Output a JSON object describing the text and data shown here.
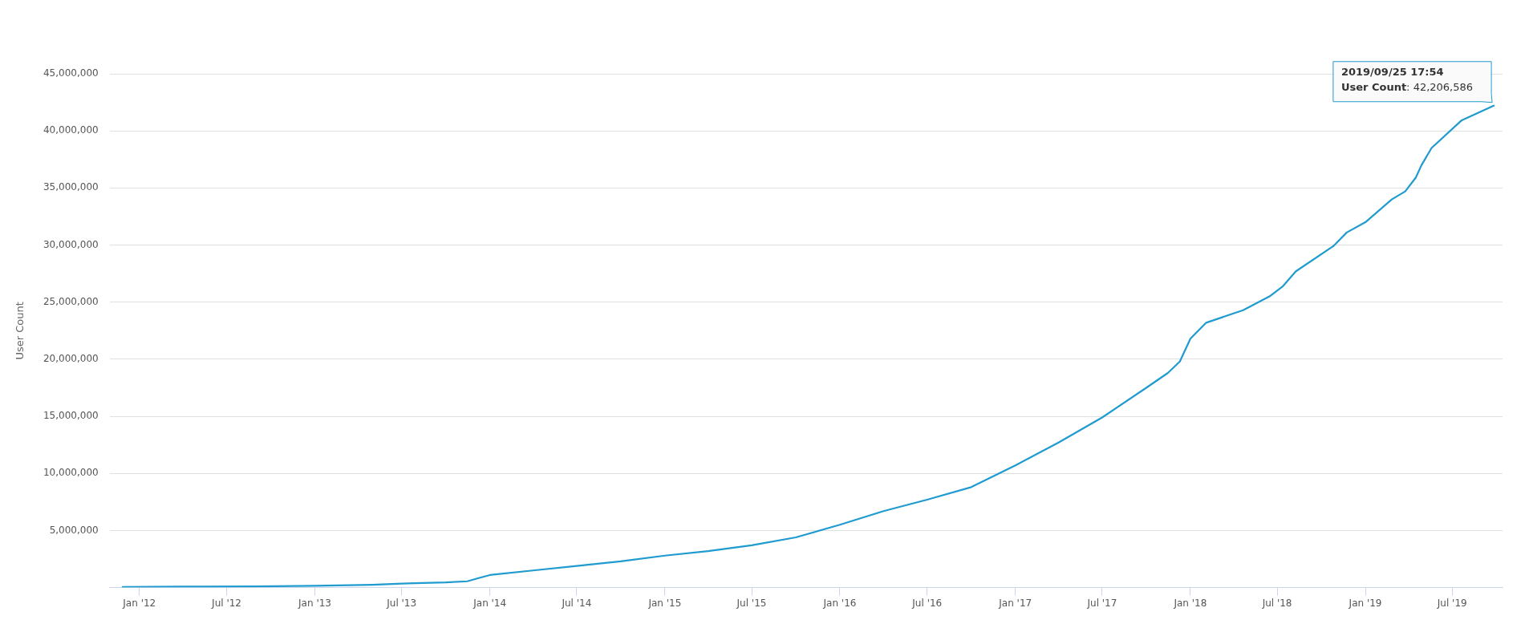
{
  "chart_data": {
    "type": "line",
    "ylabel": "User Count",
    "x": [
      "2011-11-27",
      "2012-04-01",
      "2012-09-01",
      "2013-01-01",
      "2013-05-01",
      "2013-07-01",
      "2013-10-01",
      "2013-11-15",
      "2013-12-10",
      "2014-01-01",
      "2014-04-01",
      "2014-07-01",
      "2014-10-01",
      "2015-01-01",
      "2015-04-01",
      "2015-07-01",
      "2015-10-01",
      "2016-01-01",
      "2016-04-01",
      "2016-07-01",
      "2016-10-01",
      "2017-01-01",
      "2017-04-01",
      "2017-07-01",
      "2017-10-01",
      "2017-11-15",
      "2017-12-10",
      "2018-01-01",
      "2018-02-03",
      "2018-04-21",
      "2018-06-15",
      "2018-07-13",
      "2018-08-09",
      "2018-10-26",
      "2018-11-23",
      "2019-01-01",
      "2019-02-25",
      "2019-03-25",
      "2019-04-16",
      "2019-04-28",
      "2019-05-19",
      "2019-07-20",
      "2019-09-25T17:54"
    ],
    "series": [
      {
        "color": "#1f9bcf",
        "values": [
          60000,
          80000,
          100000,
          150000,
          250000,
          350000,
          450000,
          550000,
          850000,
          1100000,
          1500000,
          1900000,
          2300000,
          2800000,
          3200000,
          3700000,
          4400000,
          5500000,
          6700000,
          7700000,
          8800000,
          10700000,
          12700000,
          14900000,
          17500000,
          18800000,
          19800000,
          21800000,
          23200000,
          24300000,
          25500000,
          26400000,
          27700000,
          29900000,
          31100000,
          32000000,
          34000000,
          34700000,
          35900000,
          37000000,
          38500000,
          40900000,
          42206586
        ]
      }
    ],
    "ylim": [
      0,
      45000000
    ],
    "yticks": [
      {
        "value": 5000000,
        "label": "5,000,000"
      },
      {
        "value": 10000000,
        "label": "10,000,000"
      },
      {
        "value": 15000000,
        "label": "15,000,000"
      },
      {
        "value": 20000000,
        "label": "20,000,000"
      },
      {
        "value": 25000000,
        "label": "25,000,000"
      },
      {
        "value": 30000000,
        "label": "30,000,000"
      },
      {
        "value": 35000000,
        "label": "35,000,000"
      },
      {
        "value": 40000000,
        "label": "40,000,000"
      },
      {
        "value": 45000000,
        "label": "45,000,000"
      }
    ],
    "xlim": [
      "2011-10-31",
      "2019-10-14"
    ],
    "xticks": [
      {
        "value": "2012-01-01",
        "label": "Jan '12"
      },
      {
        "value": "2012-07-01",
        "label": "Jul '12"
      },
      {
        "value": "2013-01-01",
        "label": "Jan '13"
      },
      {
        "value": "2013-07-01",
        "label": "Jul '13"
      },
      {
        "value": "2014-01-01",
        "label": "Jan '14"
      },
      {
        "value": "2014-07-01",
        "label": "Jul '14"
      },
      {
        "value": "2015-01-01",
        "label": "Jan '15"
      },
      {
        "value": "2015-07-01",
        "label": "Jul '15"
      },
      {
        "value": "2016-01-01",
        "label": "Jan '16"
      },
      {
        "value": "2016-07-01",
        "label": "Jul '16"
      },
      {
        "value": "2017-01-01",
        "label": "Jan '17"
      },
      {
        "value": "2017-07-01",
        "label": "Jul '17"
      },
      {
        "value": "2018-01-01",
        "label": "Jan '18"
      },
      {
        "value": "2018-07-01",
        "label": "Jul '18"
      },
      {
        "value": "2019-01-01",
        "label": "Jan '19"
      },
      {
        "value": "2019-07-01",
        "label": "Jul '19"
      }
    ],
    "grid": "y",
    "legend": false,
    "marker": "none",
    "line_style": "solid",
    "annotations": [
      {
        "text": "2019/09/25 17:54\nUser Count: 42,206,586",
        "x": "2019-09-25T17:54",
        "y": 42206586
      }
    ]
  }
}
